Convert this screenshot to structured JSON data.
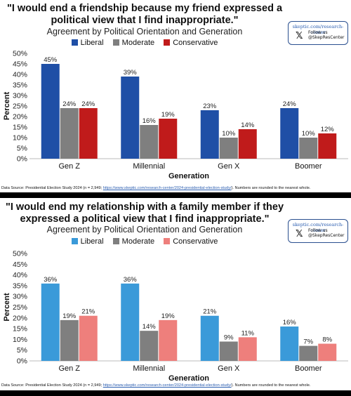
{
  "panels": [
    {
      "title": "\"I would end a friendship because my friend expressed a political view that I find inappropriate.\"",
      "subtitle": "Agreement by Political Orientation and Generation",
      "badge": {
        "url": "skeptic.com/research-center",
        "follow": "Follow us",
        "handle": "@SkepResCenter",
        "icon": "x-logo-icon"
      },
      "source_prefix": "Data Source: Presidential Election Study 2024 (n = 2,949; ",
      "source_link": "https://www.skeptic.com/research-center/2024-presidential-election-study/",
      "source_suffix": "). Numbers are rounded to the nearest whole.",
      "colors": {
        "Liberal": "#1f4fa6",
        "Moderate": "#7f7f7f",
        "Conservative": "#c01b1b"
      }
    },
    {
      "title": "\"I would end my relationship with a family member if they expressed a political view that I find inappropriate.\"",
      "subtitle": "Agreement by Political Orientation and Generation",
      "badge": {
        "url": "skeptic.com/research-center",
        "follow": "Follow us",
        "handle": "@SkepResCenter",
        "icon": "x-logo-icon"
      },
      "source_prefix": "Data Source: Presidential Election Study 2024 (n = 2,949; ",
      "source_link": "https://www.skeptic.com/research-center/2024-presidential-election-study/",
      "source_suffix": "). Numbers are rounded to the nearest whole.",
      "colors": {
        "Liberal": "#3a9ad9",
        "Moderate": "#7f7f7f",
        "Conservative": "#ee7f7c"
      }
    }
  ],
  "chart_data": [
    {
      "type": "bar",
      "title": "\"I would end a friendship because my friend expressed a political view that I find inappropriate.\"",
      "subtitle": "Agreement by Political Orientation and Generation",
      "categories": [
        "Gen Z",
        "Millennial",
        "Gen X",
        "Boomer"
      ],
      "series": [
        {
          "name": "Liberal",
          "values": [
            45,
            39,
            23,
            24
          ]
        },
        {
          "name": "Moderate",
          "values": [
            24,
            16,
            10,
            10
          ]
        },
        {
          "name": "Conservative",
          "values": [
            24,
            19,
            14,
            12
          ]
        }
      ],
      "xlabel": "Generation",
      "ylabel": "Percent",
      "ylim": [
        0,
        50
      ],
      "yticks": [
        "0%",
        "5%",
        "10%",
        "15%",
        "20%",
        "25%",
        "30%",
        "35%",
        "40%",
        "45%",
        "50%"
      ],
      "value_suffix": "%",
      "legend": "top-center",
      "grid": false
    },
    {
      "type": "bar",
      "title": "\"I would end my relationship with a family member if they expressed a political view that I find inappropriate.\"",
      "subtitle": "Agreement by Political Orientation and Generation",
      "categories": [
        "Gen Z",
        "Millennial",
        "Gen X",
        "Boomer"
      ],
      "series": [
        {
          "name": "Liberal",
          "values": [
            36,
            36,
            21,
            16
          ]
        },
        {
          "name": "Moderate",
          "values": [
            19,
            14,
            9,
            7
          ]
        },
        {
          "name": "Conservative",
          "values": [
            21,
            19,
            11,
            8
          ]
        }
      ],
      "xlabel": "Generation",
      "ylabel": "Percent",
      "ylim": [
        0,
        50
      ],
      "yticks": [
        "0%",
        "5%",
        "10%",
        "15%",
        "20%",
        "25%",
        "30%",
        "35%",
        "40%",
        "45%",
        "50%"
      ],
      "value_suffix": "%",
      "legend": "top-center",
      "grid": false
    }
  ]
}
